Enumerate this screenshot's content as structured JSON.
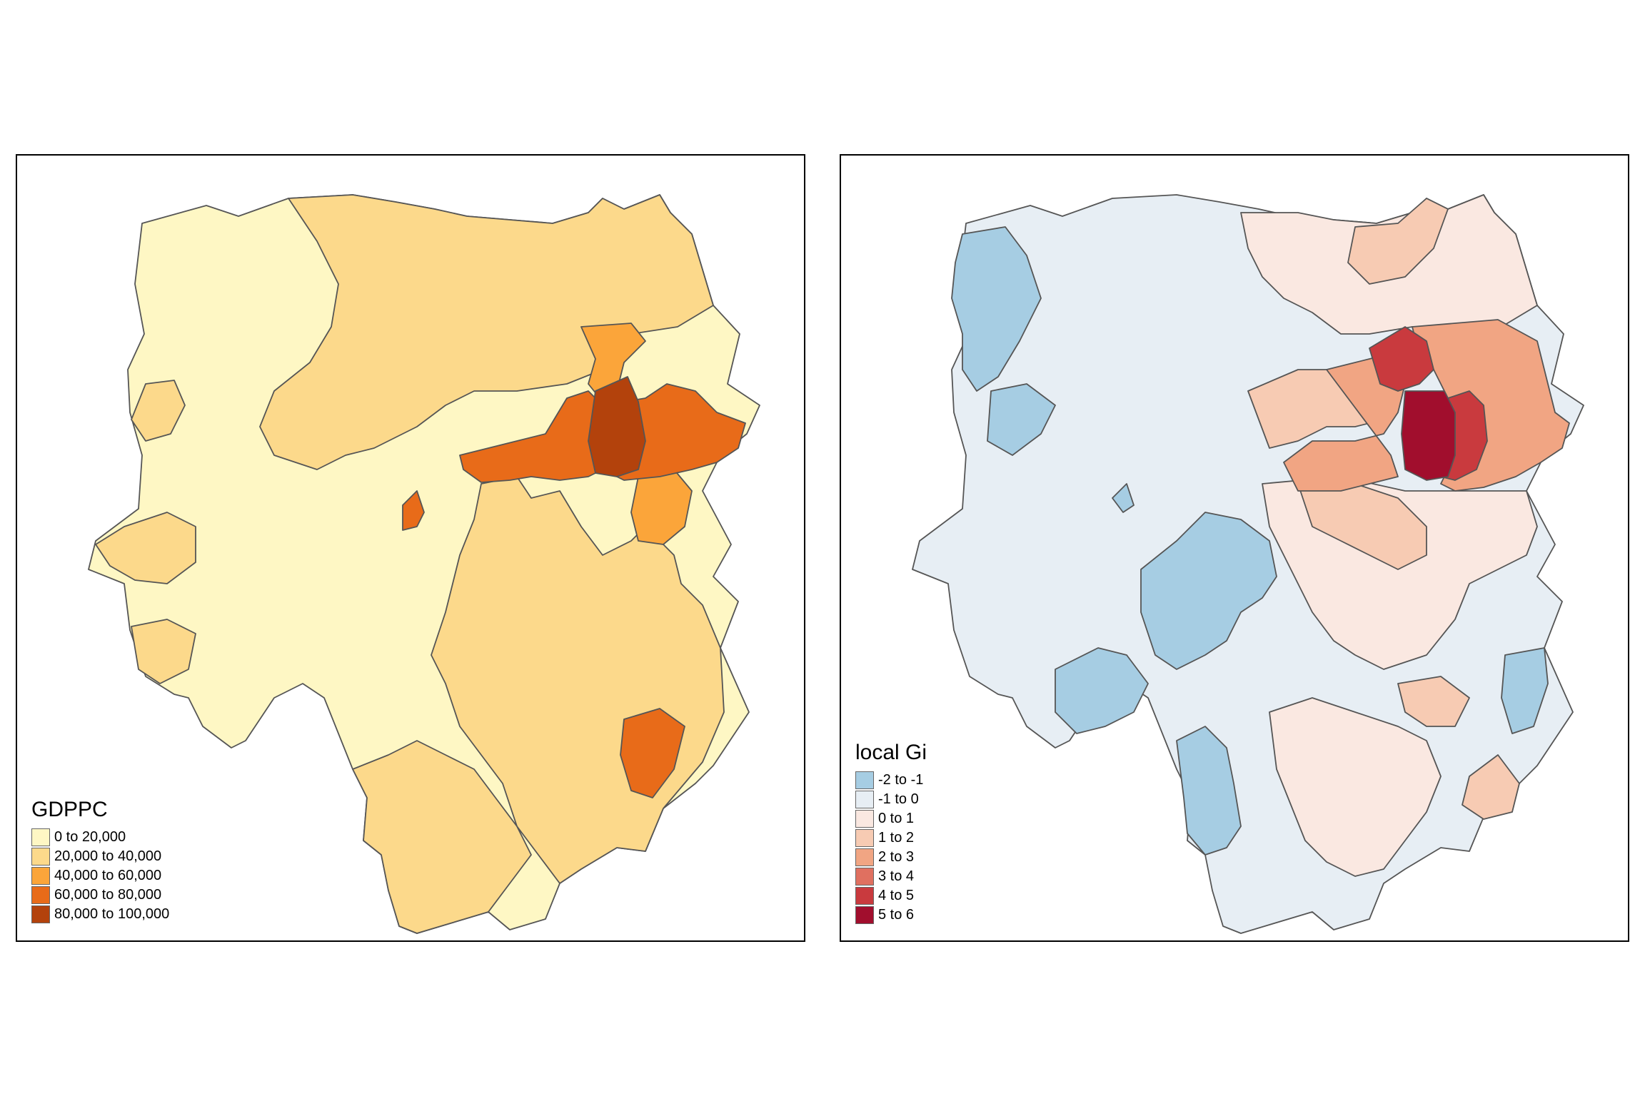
{
  "maps": [
    {
      "legend": {
        "title": "GDPPC",
        "classes": [
          {
            "label": "0 to 20,000",
            "color": "#fef7c4"
          },
          {
            "label": "20,000 to 40,000",
            "color": "#fcd98b"
          },
          {
            "label": "40,000 to 60,000",
            "color": "#fba53a"
          },
          {
            "label": "60,000 to 80,000",
            "color": "#e86b19"
          },
          {
            "label": "80,000 to 100,000",
            "color": "#b3420c"
          }
        ]
      }
    },
    {
      "legend": {
        "title": "local Gi",
        "classes": [
          {
            "label": "-2 to -1",
            "color": "#a6cde3"
          },
          {
            "label": "-1 to 0",
            "color": "#e7eef4"
          },
          {
            "label": "0 to 1",
            "color": "#fae8e1"
          },
          {
            "label": "1 to 2",
            "color": "#f7cbb3"
          },
          {
            "label": "2 to 3",
            "color": "#f1a583"
          },
          {
            "label": "3 to 4",
            "color": "#e07060"
          },
          {
            "label": "4 to 5",
            "color": "#c93a3e"
          },
          {
            "label": "5 to 6",
            "color": "#a10e2d"
          }
        ]
      }
    }
  ]
}
